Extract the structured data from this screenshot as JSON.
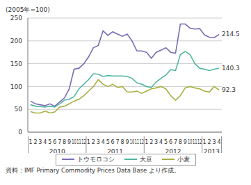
{
  "chart_data": {
    "type": "line",
    "y_label": "(2005年=100)",
    "source": "資料：IMF Primary Commodity Prices Data Base より作成。",
    "categories": [
      "1",
      "2",
      "3",
      "4",
      "5",
      "6",
      "7",
      "8",
      "9",
      "10",
      "11",
      "12",
      "1",
      "2",
      "3",
      "4",
      "5",
      "6",
      "7",
      "8",
      "9",
      "10",
      "11",
      "12",
      "1",
      "2",
      "3",
      "4",
      "5",
      "6",
      "7",
      "8",
      "9",
      "10",
      "11",
      "12",
      "1",
      "2",
      "3",
      "4"
    ],
    "year_labels": [
      "2010",
      "2011",
      "2012",
      "2013"
    ],
    "series": [
      {
        "name": "トウモロコシ",
        "color": "#7b6bb5",
        "values": [
          68,
          62,
          60,
          58,
          62,
          57,
          66,
          75,
          95,
          138,
          140,
          150,
          165,
          185,
          190,
          222,
          212,
          220,
          215,
          210,
          215,
          200,
          178,
          178,
          175,
          162,
          175,
          180,
          185,
          175,
          173,
          237,
          237,
          228,
          226,
          227,
          213,
          208,
          207,
          214.5
        ],
        "value_labels": [
          null,
          null,
          null,
          null,
          null,
          null,
          null,
          null,
          null,
          null,
          null,
          null,
          null,
          null,
          null,
          null,
          null,
          null,
          null,
          null,
          null,
          null,
          null,
          null,
          null,
          null,
          null,
          null,
          null,
          null,
          null,
          null,
          null,
          null,
          null,
          null,
          null,
          null,
          null,
          "214.5"
        ]
      },
      {
        "name": "大豆",
        "color": "#4fb6a0",
        "values": [
          60,
          57,
          56,
          55,
          57,
          55,
          62,
          70,
          72,
          78,
          95,
          105,
          115,
          128,
          127,
          122,
          124,
          123,
          123,
          123,
          122,
          118,
          108,
          105,
          100,
          98,
          110,
          118,
          125,
          137,
          135,
          170,
          177,
          170,
          150,
          140,
          138,
          135,
          138,
          140.3
        ],
        "value_labels": [
          null,
          null,
          null,
          null,
          null,
          null,
          null,
          null,
          null,
          null,
          null,
          null,
          null,
          null,
          null,
          null,
          null,
          null,
          null,
          null,
          null,
          null,
          null,
          null,
          null,
          null,
          null,
          null,
          null,
          null,
          null,
          null,
          null,
          null,
          null,
          null,
          null,
          null,
          null,
          "140.3"
        ]
      },
      {
        "name": "小麦",
        "color": "#a8b040",
        "values": [
          45,
          42,
          42,
          46,
          42,
          44,
          55,
          57,
          62,
          68,
          72,
          80,
          90,
          100,
          115,
          105,
          100,
          105,
          98,
          100,
          88,
          88,
          90,
          85,
          90,
          95,
          97,
          100,
          95,
          80,
          70,
          80,
          97,
          100,
          97,
          95,
          90,
          88,
          100,
          92.3
        ],
        "value_labels": [
          null,
          null,
          null,
          null,
          null,
          null,
          null,
          null,
          null,
          null,
          null,
          null,
          null,
          null,
          null,
          null,
          null,
          null,
          null,
          null,
          null,
          null,
          null,
          null,
          null,
          null,
          null,
          null,
          null,
          null,
          null,
          null,
          null,
          null,
          null,
          null,
          null,
          null,
          null,
          "92.3"
        ]
      }
    ],
    "ylim": [
      0,
      250
    ],
    "yticks": [
      0,
      50,
      100,
      150,
      200,
      250
    ],
    "grid": true,
    "legend": "bottom"
  }
}
